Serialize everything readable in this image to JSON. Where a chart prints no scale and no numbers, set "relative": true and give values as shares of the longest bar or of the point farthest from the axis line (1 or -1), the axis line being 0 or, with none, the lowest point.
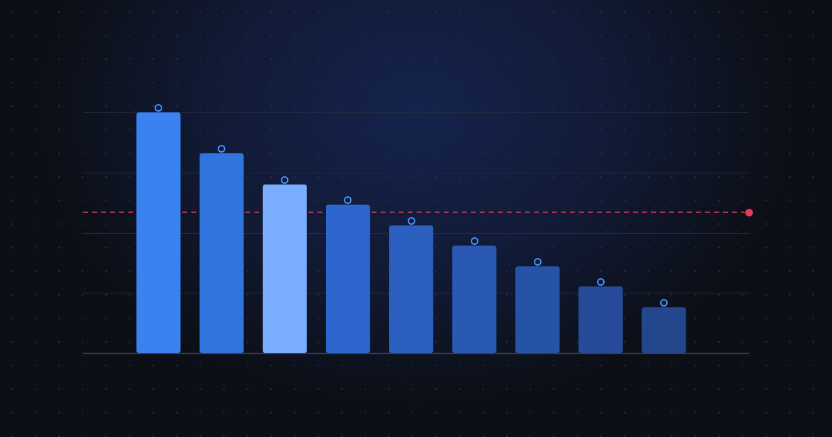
{
  "chart_data": {
    "type": "bar",
    "relative": true,
    "categories": [
      null,
      null,
      null,
      null,
      null,
      null,
      null,
      null,
      null
    ],
    "values": [
      1,
      0.83,
      0.7,
      0.617,
      0.53,
      0.447,
      0.36,
      0.277,
      0.19
    ],
    "colors": [
      "#3a82f0",
      "#3074de",
      "#7aadff",
      "#2d66cc",
      "#2b60c0",
      "#2959b3",
      "#2753a6",
      "#264c99",
      "#24468c"
    ],
    "marker": "circle",
    "grid": "y",
    "ref_lines": [
      {
        "axis": "y",
        "value": 0.585,
        "color": "#e0405a",
        "line_style": "dashed"
      }
    ]
  }
}
